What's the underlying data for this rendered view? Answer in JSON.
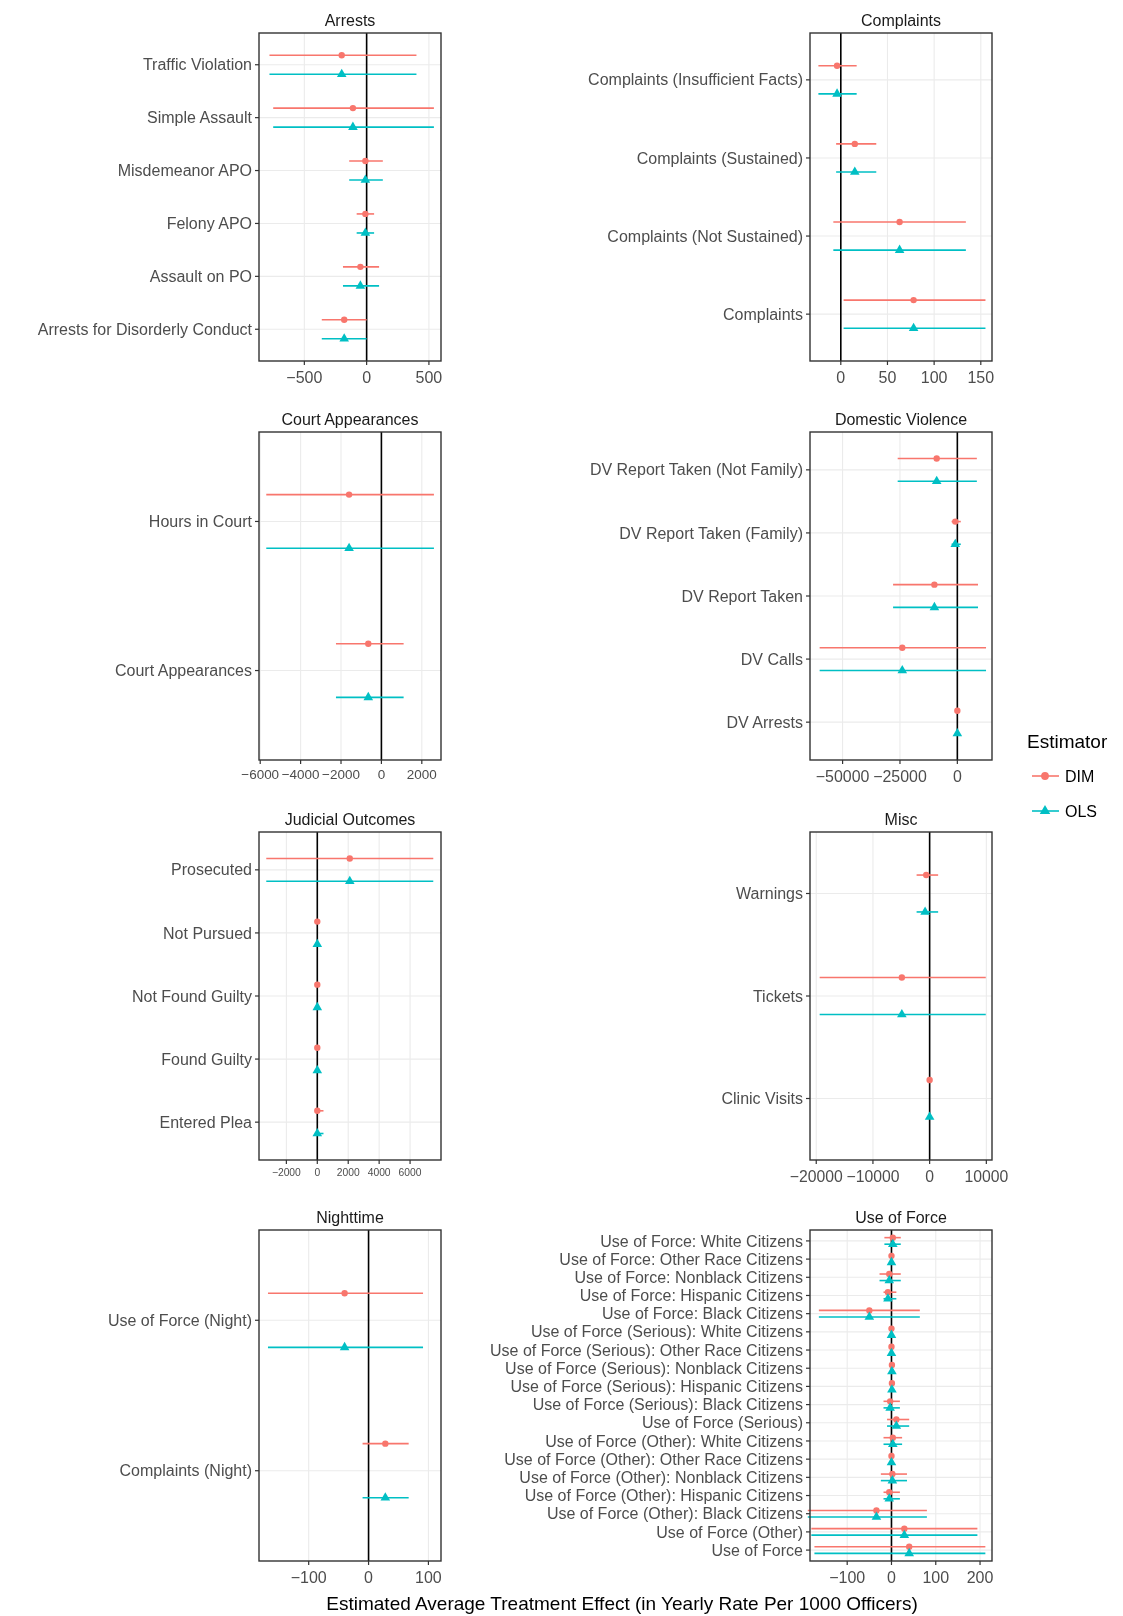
{
  "chart_data": [
    {
      "type": "scatter",
      "title": "Arrests",
      "orientation": "horizontal",
      "categories": [
        "Traffic Violation",
        "Simple Assault",
        "Misdemeanor APO",
        "Felony APO",
        "Assault on PO",
        "Arrests for Disorderly Conduct"
      ],
      "xlim": [
        -864,
        597
      ],
      "xticks": [
        -500,
        0,
        500
      ],
      "grid": true,
      "ref_lines": [
        {
          "axis": "x",
          "value": 0
        }
      ],
      "series": [
        {
          "color": "#f8766d",
          "marker": "circle",
          "values": [
            -200,
            -110,
            -10,
            -10,
            -50,
            -180
          ],
          "errors": [
            [
              -780,
              400
            ],
            [
              -750,
              540
            ],
            [
              -140,
              130
            ],
            [
              -80,
              60
            ],
            [
              -190,
              100
            ],
            [
              -360,
              0
            ]
          ]
        },
        {
          "color": "#00bfc4",
          "marker": "triangle",
          "values": [
            -200,
            -110,
            -10,
            -10,
            -50,
            -180
          ],
          "errors": [
            [
              -780,
              400
            ],
            [
              -750,
              540
            ],
            [
              -140,
              130
            ],
            [
              -80,
              60
            ],
            [
              -190,
              100
            ],
            [
              -360,
              0
            ]
          ]
        }
      ]
    },
    {
      "type": "scatter",
      "title": "Complaints",
      "orientation": "horizontal",
      "categories": [
        "Complaints (Insufficient Facts)",
        "Complaints (Sustained)",
        "Complaints (Not Sustained)",
        "Complaints"
      ],
      "xlim": [
        -33,
        162
      ],
      "xticks": [
        0,
        50,
        100,
        150
      ],
      "grid": true,
      "ref_lines": [
        {
          "axis": "x",
          "value": 0
        }
      ],
      "series": [
        {
          "color": "#f8766d",
          "marker": "circle",
          "values": [
            -4,
            15,
            63,
            78
          ],
          "errors": [
            [
              -24,
              17
            ],
            [
              -5,
              38
            ],
            [
              -8,
              134
            ],
            [
              3,
              155
            ]
          ]
        },
        {
          "color": "#00bfc4",
          "marker": "triangle",
          "values": [
            -4,
            15,
            63,
            78
          ],
          "errors": [
            [
              -24,
              17
            ],
            [
              -5,
              38
            ],
            [
              -8,
              134
            ],
            [
              3,
              155
            ]
          ]
        }
      ]
    },
    {
      "type": "scatter",
      "title": "Court Appearances",
      "orientation": "horizontal",
      "categories": [
        "Hours in Court",
        "Court Appearances"
      ],
      "xlim": [
        -6060,
        2950
      ],
      "xticks": [
        -6000,
        -4000,
        -2000,
        0,
        2000
      ],
      "grid": true,
      "ref_lines": [
        {
          "axis": "x",
          "value": 0
        }
      ],
      "series": [
        {
          "color": "#f8766d",
          "marker": "circle",
          "values": [
            -1600,
            -650
          ],
          "errors": [
            [
              -5700,
              2600
            ],
            [
              -2250,
              1100
            ]
          ]
        },
        {
          "color": "#00bfc4",
          "marker": "triangle",
          "values": [
            -1600,
            -650
          ],
          "errors": [
            [
              -5700,
              2600
            ],
            [
              -2250,
              1100
            ]
          ]
        }
      ]
    },
    {
      "type": "scatter",
      "title": "Domestic Violence",
      "orientation": "horizontal",
      "categories": [
        "DV Report Taken (Not Family)",
        "DV Report Taken (Family)",
        "DV Report Taken",
        "DV Calls",
        "DV Arrests"
      ],
      "xlim": [
        -64200,
        15100
      ],
      "xticks": [
        -50000,
        -25000,
        0
      ],
      "grid": true,
      "legend": "right",
      "legend_title": "Estimator",
      "ref_lines": [
        {
          "axis": "x",
          "value": 0
        }
      ],
      "series": [
        {
          "name": "DIM",
          "color": "#f8766d",
          "marker": "circle",
          "values": [
            -9000,
            -900,
            -10000,
            -24000,
            0
          ],
          "errors": [
            [
              -26000,
              8500
            ],
            [
              -2500,
              1500
            ],
            [
              -28000,
              9000
            ],
            [
              -60000,
              12500
            ],
            null
          ]
        },
        {
          "name": "OLS",
          "color": "#00bfc4",
          "marker": "triangle",
          "values": [
            -9000,
            -900,
            -10000,
            -24000,
            0
          ],
          "errors": [
            [
              -26000,
              8500
            ],
            [
              -2500,
              1500
            ],
            [
              -28000,
              9000
            ],
            [
              -60000,
              12500
            ],
            null
          ]
        }
      ]
    },
    {
      "type": "scatter",
      "title": "Judicial Outcomes",
      "orientation": "horizontal",
      "categories": [
        "Prosecuted",
        "Not Pursued",
        "Not Found Guilty",
        "Found Guilty",
        "Entered Plea"
      ],
      "xlim": [
        -3770,
        8000
      ],
      "xticks": [
        -2000,
        0,
        2000,
        4000,
        6000
      ],
      "grid": true,
      "ref_lines": [
        {
          "axis": "x",
          "value": 0
        }
      ],
      "series": [
        {
          "color": "#f8766d",
          "marker": "circle",
          "values": [
            2100,
            0,
            0,
            0,
            0
          ],
          "errors": [
            [
              -3300,
              7500
            ],
            null,
            null,
            null,
            [
              -100,
              400
            ]
          ]
        },
        {
          "color": "#00bfc4",
          "marker": "triangle",
          "values": [
            2100,
            0,
            0,
            0,
            0
          ],
          "errors": [
            [
              -3300,
              7500
            ],
            null,
            null,
            null,
            [
              -100,
              400
            ]
          ]
        }
      ]
    },
    {
      "type": "scatter",
      "title": "Misc",
      "orientation": "horizontal",
      "categories": [
        "Warnings",
        "Tickets",
        "Clinic Visits"
      ],
      "xlim": [
        -21100,
        11000
      ],
      "xticks": [
        -20000,
        -10000,
        0,
        10000
      ],
      "grid": true,
      "ref_lines": [
        {
          "axis": "x",
          "value": 0
        }
      ],
      "series": [
        {
          "color": "#f8766d",
          "marker": "circle",
          "values": [
            -600,
            -4900,
            0
          ],
          "errors": [
            [
              -2300,
              1500
            ],
            [
              -19400,
              9900
            ],
            null
          ]
        },
        {
          "color": "#00bfc4",
          "marker": "triangle",
          "values": [
            -800,
            -4900,
            0
          ],
          "errors": [
            [
              -2300,
              1500
            ],
            [
              -19400,
              9900
            ],
            null
          ]
        }
      ]
    },
    {
      "type": "scatter",
      "title": "Nighttime",
      "orientation": "horizontal",
      "categories": [
        "Use of Force (Night)",
        "Complaints (Night)"
      ],
      "xlim": [
        -183,
        121
      ],
      "xticks": [
        -100,
        0,
        100
      ],
      "grid": true,
      "ref_lines": [
        {
          "axis": "x",
          "value": 0
        }
      ],
      "series": [
        {
          "color": "#f8766d",
          "marker": "circle",
          "values": [
            -40,
            28
          ],
          "errors": [
            [
              -168,
              91
            ],
            [
              -10,
              67
            ]
          ]
        },
        {
          "color": "#00bfc4",
          "marker": "triangle",
          "values": [
            -40,
            28
          ],
          "errors": [
            [
              -168,
              91
            ],
            [
              -10,
              67
            ]
          ]
        }
      ]
    },
    {
      "type": "scatter",
      "title": "Use of Force",
      "orientation": "horizontal",
      "xlabel": "Estimated Average Treatment Effect (in Yearly Rate Per 1000 Officers)",
      "categories": [
        "Use of Force: White Citizens",
        "Use of Force: Other Race Citizens",
        "Use of Force: Nonblack Citizens",
        "Use of Force: Hispanic Citizens",
        "Use of Force: Black Citizens",
        "Use of Force (Serious): White Citizens",
        "Use of Force (Serious): Other Race Citizens",
        "Use of Force (Serious): Nonblack Citizens",
        "Use of Force (Serious): Hispanic Citizens",
        "Use of Force (Serious): Black Citizens",
        "Use of Force (Serious)",
        "Use of Force (Other): White Citizens",
        "Use of Force (Other): Other Race Citizens",
        "Use of Force (Other): Nonblack Citizens",
        "Use of Force (Other): Hispanic Citizens",
        "Use of Force (Other): Black Citizens",
        "Use of Force (Other)",
        "Use of Force"
      ],
      "xlim": [
        -184,
        227
      ],
      "xticks": [
        -100,
        0,
        100,
        200
      ],
      "grid": true,
      "ref_lines": [
        {
          "axis": "x",
          "value": 0
        }
      ],
      "series": [
        {
          "color": "#f8766d",
          "marker": "circle",
          "values": [
            3,
            0,
            -5,
            -8,
            -50,
            0,
            0,
            1,
            1,
            -3,
            11,
            3,
            0,
            2,
            -5,
            -34,
            29,
            40
          ],
          "errors": [
            [
              -16,
              21
            ],
            null,
            [
              -27,
              21
            ],
            [
              -18,
              11
            ],
            [
              -164,
              64
            ],
            null,
            null,
            null,
            null,
            [
              -18,
              19
            ],
            [
              -10,
              40
            ],
            [
              -18,
              24
            ],
            null,
            [
              -24,
              35
            ],
            [
              -18,
              19
            ],
            [
              -189,
              80
            ],
            [
              -181,
              194
            ],
            [
              -174,
              212
            ]
          ]
        },
        {
          "color": "#00bfc4",
          "marker": "triangle",
          "values": [
            3,
            0,
            -5,
            -8,
            -50,
            0,
            0,
            1,
            1,
            -3,
            11,
            3,
            0,
            2,
            -5,
            -34,
            29,
            40
          ],
          "errors": [
            [
              -16,
              21
            ],
            null,
            [
              -27,
              21
            ],
            [
              -18,
              11
            ],
            [
              -164,
              64
            ],
            null,
            null,
            null,
            null,
            [
              -18,
              19
            ],
            [
              -10,
              40
            ],
            [
              -18,
              24
            ],
            null,
            [
              -24,
              35
            ],
            [
              -18,
              19
            ],
            [
              -189,
              80
            ],
            [
              -181,
              194
            ],
            [
              -174,
              212
            ]
          ]
        }
      ]
    }
  ]
}
